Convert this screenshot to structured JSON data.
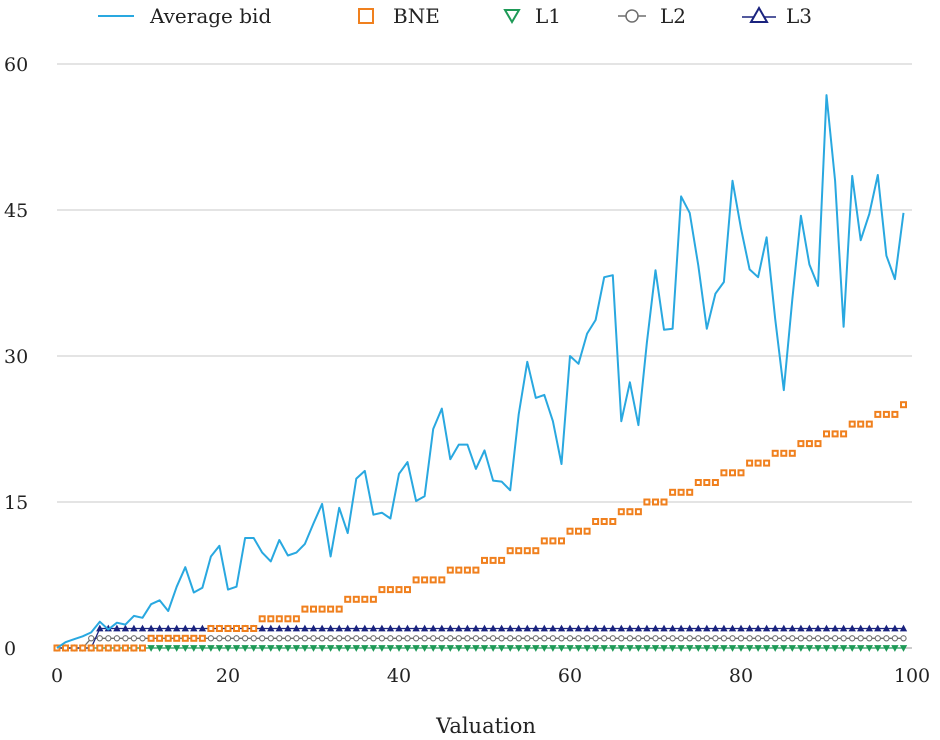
{
  "chart_data": {
    "type": "line",
    "title": "",
    "xlabel": "Valuation",
    "ylabel": "",
    "xlim": [
      0,
      100
    ],
    "ylim": [
      0,
      60
    ],
    "x_ticks": [
      "0",
      "20",
      "40",
      "60",
      "80",
      "100"
    ],
    "y_ticks": [
      "0",
      "15",
      "30",
      "45",
      "60"
    ],
    "grid": "horizontal",
    "legend_position": "top",
    "x": [
      0,
      1,
      2,
      3,
      4,
      5,
      6,
      7,
      8,
      9,
      10,
      11,
      12,
      13,
      14,
      15,
      16,
      17,
      18,
      19,
      20,
      21,
      22,
      23,
      24,
      25,
      26,
      27,
      28,
      29,
      30,
      31,
      32,
      33,
      34,
      35,
      36,
      37,
      38,
      39,
      40,
      41,
      42,
      43,
      44,
      45,
      46,
      47,
      48,
      49,
      50,
      51,
      52,
      53,
      54,
      55,
      56,
      57,
      58,
      59,
      60,
      61,
      62,
      63,
      64,
      65,
      66,
      67,
      68,
      69,
      70,
      71,
      72,
      73,
      74,
      75,
      76,
      77,
      78,
      79,
      80,
      81,
      82,
      83,
      84,
      85,
      86,
      87,
      88,
      89,
      90,
      91,
      92,
      93,
      94,
      95,
      96,
      97,
      98,
      99
    ],
    "series": [
      {
        "name": "Average bid",
        "color": "#29a8e0",
        "marker": "line",
        "values": [
          0,
          0.6,
          0.9,
          1.2,
          1.6,
          2.7,
          1.9,
          2.6,
          2.4,
          3.3,
          3.1,
          4.5,
          4.9,
          3.8,
          6.3,
          8.3,
          5.7,
          6.2,
          9.4,
          10.5,
          6,
          6.3,
          11.3,
          11.3,
          9.8,
          8.9,
          11.1,
          9.5,
          9.8,
          10.7,
          12.8,
          14.8,
          9.4,
          14.4,
          11.8,
          17.4,
          18.2,
          13.7,
          13.9,
          13.3,
          17.9,
          19.1,
          15.1,
          15.6,
          22.5,
          24.6,
          19.4,
          20.9,
          20.9,
          18.4,
          20.3,
          17.2,
          17.1,
          16.2,
          24,
          29.4,
          25.7,
          26,
          23.3,
          18.9,
          30,
          29.2,
          32.3,
          33.7,
          38.1,
          38.3,
          23.3,
          27.3,
          22.9,
          31.4,
          38.8,
          32.7,
          32.8,
          46.4,
          44.7,
          39.3,
          32.8,
          36.4,
          37.6,
          48,
          43.1,
          38.9,
          38.1,
          42.2,
          33.8,
          26.5,
          35.8,
          44.4,
          39.4,
          37.2,
          56.8,
          48,
          33,
          48.5,
          41.9,
          44.6,
          48.6,
          40.3,
          37.9,
          44.7
        ]
      },
      {
        "name": "BNE",
        "color": "#f0801e",
        "marker": "square",
        "values": [
          0,
          0,
          0,
          0,
          0,
          0,
          0,
          0,
          0,
          0,
          0,
          1,
          1,
          1,
          1,
          1,
          1,
          1,
          2,
          2,
          2,
          2,
          2,
          2,
          3,
          3,
          3,
          3,
          3,
          4,
          4,
          4,
          4,
          4,
          5,
          5,
          5,
          5,
          6,
          6,
          6,
          6,
          7,
          7,
          7,
          7,
          8,
          8,
          8,
          8,
          9,
          9,
          9,
          10,
          10,
          10,
          10,
          11,
          11,
          11,
          12,
          12,
          12,
          13,
          13,
          13,
          14,
          14,
          14,
          15,
          15,
          15,
          16,
          16,
          16,
          17,
          17,
          17,
          18,
          18,
          18,
          19,
          19,
          19,
          20,
          20,
          20,
          21,
          21,
          21,
          22,
          22,
          22,
          23,
          23,
          23,
          24,
          24,
          24,
          25
        ]
      },
      {
        "name": "L1",
        "color": "#1e9a57",
        "marker": "triangle-down",
        "values": [
          0,
          0,
          0,
          0,
          0,
          0,
          0,
          0,
          0,
          0,
          0,
          0,
          0,
          0,
          0,
          0,
          0,
          0,
          0,
          0,
          0,
          0,
          0,
          0,
          0,
          0,
          0,
          0,
          0,
          0,
          0,
          0,
          0,
          0,
          0,
          0,
          0,
          0,
          0,
          0,
          0,
          0,
          0,
          0,
          0,
          0,
          0,
          0,
          0,
          0,
          0,
          0,
          0,
          0,
          0,
          0,
          0,
          0,
          0,
          0,
          0,
          0,
          0,
          0,
          0,
          0,
          0,
          0,
          0,
          0,
          0,
          0,
          0,
          0,
          0,
          0,
          0,
          0,
          0,
          0,
          0,
          0,
          0,
          0,
          0,
          0,
          0,
          0,
          0,
          0,
          0,
          0,
          0,
          0,
          0,
          0,
          0,
          0,
          0,
          0
        ]
      },
      {
        "name": "L2",
        "color": "#6e6e6e",
        "marker": "circle",
        "values": [
          0,
          0,
          0,
          0,
          1,
          1,
          1,
          1,
          1,
          1,
          1,
          1,
          1,
          1,
          1,
          1,
          1,
          1,
          1,
          1,
          1,
          1,
          1,
          1,
          1,
          1,
          1,
          1,
          1,
          1,
          1,
          1,
          1,
          1,
          1,
          1,
          1,
          1,
          1,
          1,
          1,
          1,
          1,
          1,
          1,
          1,
          1,
          1,
          1,
          1,
          1,
          1,
          1,
          1,
          1,
          1,
          1,
          1,
          1,
          1,
          1,
          1,
          1,
          1,
          1,
          1,
          1,
          1,
          1,
          1,
          1,
          1,
          1,
          1,
          1,
          1,
          1,
          1,
          1,
          1,
          1,
          1,
          1,
          1,
          1,
          1,
          1,
          1,
          1,
          1,
          1,
          1,
          1,
          1,
          1,
          1,
          1,
          1,
          1,
          1
        ]
      },
      {
        "name": "L3",
        "color": "#1a237e",
        "marker": "triangle-up",
        "values": [
          0,
          0,
          0,
          0,
          0,
          2,
          2,
          2,
          2,
          2,
          2,
          2,
          2,
          2,
          2,
          2,
          2,
          2,
          2,
          2,
          2,
          2,
          2,
          2,
          2,
          2,
          2,
          2,
          2,
          2,
          2,
          2,
          2,
          2,
          2,
          2,
          2,
          2,
          2,
          2,
          2,
          2,
          2,
          2,
          2,
          2,
          2,
          2,
          2,
          2,
          2,
          2,
          2,
          2,
          2,
          2,
          2,
          2,
          2,
          2,
          2,
          2,
          2,
          2,
          2,
          2,
          2,
          2,
          2,
          2,
          2,
          2,
          2,
          2,
          2,
          2,
          2,
          2,
          2,
          2,
          2,
          2,
          2,
          2,
          2,
          2,
          2,
          2,
          2,
          2,
          2,
          2,
          2,
          2,
          2,
          2,
          2,
          2,
          2,
          2
        ]
      }
    ]
  }
}
